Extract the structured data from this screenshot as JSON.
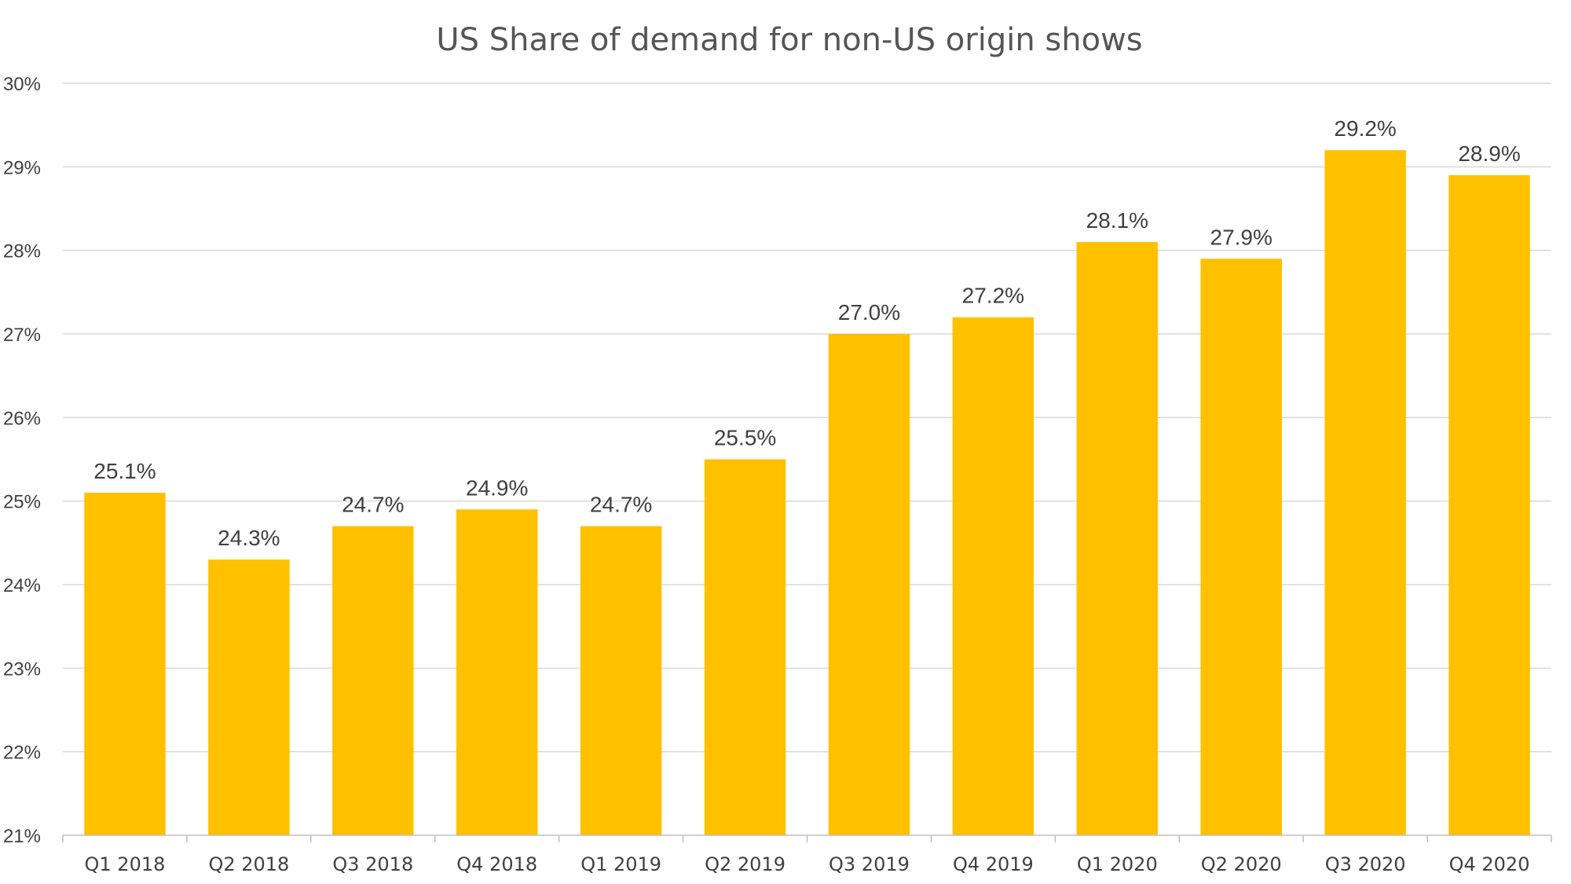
{
  "colors": {
    "bar": "#FFC000",
    "text": "#404040",
    "title": "#555555",
    "grid": "#D9D9D9"
  },
  "chart_data": {
    "type": "bar",
    "title": "US Share of demand for non-US origin shows",
    "xlabel": "",
    "ylabel": "",
    "ylim": [
      21,
      30
    ],
    "grid": true,
    "legend": "none",
    "categories": [
      "Q1 2018",
      "Q2 2018",
      "Q3 2018",
      "Q4 2018",
      "Q1 2019",
      "Q2 2019",
      "Q3 2019",
      "Q4 2019",
      "Q1 2020",
      "Q2 2020",
      "Q3 2020",
      "Q4 2020"
    ],
    "values": [
      25.1,
      24.3,
      24.7,
      24.9,
      24.7,
      25.5,
      27.0,
      27.2,
      28.1,
      27.9,
      29.2,
      28.9
    ],
    "data_labels": [
      "25.1%",
      "24.3%",
      "24.7%",
      "24.9%",
      "24.7%",
      "25.5%",
      "27.0%",
      "27.2%",
      "28.1%",
      "27.9%",
      "29.2%",
      "28.9%"
    ],
    "y_ticks": [
      21,
      22,
      23,
      24,
      25,
      26,
      27,
      28,
      29,
      30
    ],
    "y_tick_labels": [
      "21%",
      "22%",
      "23%",
      "24%",
      "25%",
      "26%",
      "27%",
      "28%",
      "29%",
      "30%"
    ]
  }
}
